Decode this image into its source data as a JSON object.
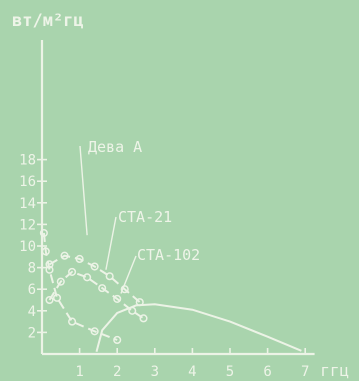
{
  "chart_data": {
    "type": "line",
    "ylabel": "вт/м²гц",
    "xlabel": "ггц",
    "xlim": [
      0,
      7
    ],
    "ylim": [
      0,
      20
    ],
    "x_ticks": [
      1,
      2,
      3,
      4,
      5,
      6,
      7
    ],
    "y_ticks": [
      2,
      4,
      6,
      8,
      10,
      12,
      14,
      16,
      18
    ],
    "grid": false,
    "legend": "none (curves labeled directly)",
    "series": [
      {
        "name": "Дева А",
        "style": "dashed-circles",
        "x": [
          0.05,
          0.1,
          0.2,
          0.4,
          0.8,
          1.4,
          2.0
        ],
        "y": [
          11.2,
          9.5,
          7.8,
          5.2,
          3.0,
          2.1,
          1.3
        ]
      },
      {
        "name": "СТА-21",
        "style": "dashed-circles",
        "x": [
          0.2,
          0.6,
          1.0,
          1.4,
          1.8,
          2.2,
          2.6
        ],
        "y": [
          8.3,
          9.1,
          8.8,
          8.1,
          7.2,
          6.0,
          4.8
        ]
      },
      {
        "name": "СТА-102",
        "style": "dashed-circles",
        "x": [
          0.2,
          0.5,
          0.8,
          1.2,
          1.6,
          2.0,
          2.4,
          2.7
        ],
        "y": [
          5.0,
          6.7,
          7.6,
          7.1,
          6.1,
          5.1,
          4.0,
          3.3
        ]
      },
      {
        "name": "",
        "style": "solid",
        "x": [
          1.45,
          1.6,
          2.0,
          2.5,
          3.0,
          4.0,
          5.0,
          6.0,
          6.9
        ],
        "y": [
          0.2,
          2.2,
          3.8,
          4.5,
          4.6,
          4.1,
          3.0,
          1.6,
          0.3
        ]
      }
    ],
    "annotations": [
      {
        "text": "Дева А",
        "series": "Дева А"
      },
      {
        "text": "СТА-21",
        "series": "СТА-21"
      },
      {
        "text": "СТА-102",
        "series": "СТА-102"
      }
    ]
  }
}
